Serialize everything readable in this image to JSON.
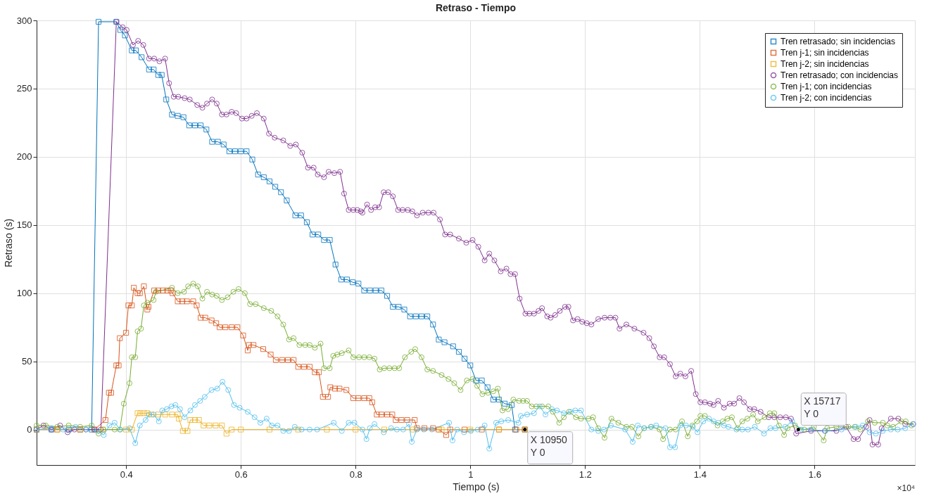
{
  "chart_data": {
    "type": "line",
    "title": "Retraso - Tiempo",
    "xlabel": "Tiempo (s)",
    "ylabel": "Retraso (s)",
    "xlim": [
      0.244,
      1.775
    ],
    "xticks": [
      0.4,
      0.6,
      0.8,
      1,
      1.2,
      1.4,
      1.6
    ],
    "ylim": [
      -26,
      300
    ],
    "yticks": [
      0,
      50,
      100,
      150,
      200,
      250,
      300
    ],
    "grid": true,
    "legend": "top right",
    "line_style": "solid",
    "annotations": [
      {
        "text": "X 10950\nY 0",
        "x": 1.095,
        "y": 0
      },
      {
        "text": "X 15717\nY 0",
        "x": 1.5717,
        "y": 0
      },
      "×10⁴"
    ],
    "series": [
      {
        "name": "Tren retrasado; sin incidencias",
        "color": "#0072bd",
        "marker": "square",
        "x": [
          0.244,
          0.27,
          0.3,
          0.32,
          0.34,
          0.352,
          0.383,
          0.39,
          0.398,
          0.41,
          0.417,
          0.427,
          0.44,
          0.448,
          0.456,
          0.462,
          0.47,
          0.48,
          0.49,
          0.5,
          0.51,
          0.52,
          0.53,
          0.54,
          0.55,
          0.56,
          0.57,
          0.58,
          0.59,
          0.6,
          0.61,
          0.62,
          0.63,
          0.64,
          0.65,
          0.66,
          0.67,
          0.68,
          0.695,
          0.705,
          0.715,
          0.725,
          0.735,
          0.745,
          0.755,
          0.765,
          0.775,
          0.785,
          0.795,
          0.805,
          0.815,
          0.825,
          0.835,
          0.845,
          0.855,
          0.865,
          0.875,
          0.885,
          0.895,
          0.905,
          0.915,
          0.925,
          0.935,
          0.945,
          0.955,
          0.97,
          0.98,
          0.99,
          1,
          1.01,
          1.02,
          1.03,
          1.04,
          1.05,
          1.06,
          1.072,
          1.078,
          1.095
        ],
        "values": [
          0,
          0,
          0,
          0,
          0,
          299,
          299,
          293,
          289,
          278,
          278,
          273,
          264,
          264,
          260,
          260,
          242,
          231,
          230,
          229,
          223,
          223,
          223,
          220,
          211,
          211,
          209,
          204,
          204,
          204,
          204,
          198,
          187,
          185,
          182,
          178,
          174,
          168,
          157,
          157,
          152,
          143,
          143,
          139,
          139,
          121,
          110,
          110,
          108,
          107,
          102,
          102,
          102,
          102,
          98,
          90,
          90,
          88,
          83,
          83,
          83,
          83,
          77,
          66,
          64,
          61,
          57,
          52,
          47,
          36,
          36,
          31,
          22,
          22,
          19,
          18,
          0,
          0
        ]
      },
      {
        "name": "Tren j-1; sin incidencias",
        "color": "#d95319",
        "marker": "square",
        "x": [
          0.244,
          0.28,
          0.32,
          0.345,
          0.364,
          0.37,
          0.374,
          0.383,
          0.387,
          0.389,
          0.4,
          0.404,
          0.41,
          0.4135,
          0.42,
          0.424,
          0.431,
          0.437,
          0.439,
          0.449,
          0.456,
          0.464,
          0.472,
          0.478,
          0.481,
          0.49,
          0.498,
          0.506,
          0.517,
          0.523,
          0.53,
          0.538,
          0.549,
          0.557,
          0.563,
          0.573,
          0.584,
          0.594,
          0.604,
          0.612,
          0.614,
          0.622,
          0.639,
          0.652,
          0.661,
          0.672,
          0.682,
          0.692,
          0.7,
          0.71,
          0.72,
          0.729,
          0.736,
          0.743,
          0.752,
          0.756,
          0.764,
          0.772,
          0.784,
          0.796,
          0.805,
          0.815,
          0.824,
          0.829,
          0.837,
          0.845,
          0.855,
          0.864,
          0.87,
          0.88,
          0.89,
          0.903,
          0.907,
          0.92,
          0.935,
          0.945,
          0.958,
          0.965,
          0.99,
          1.02,
          1.05,
          1.08,
          1.095
        ],
        "values": [
          0,
          0,
          0,
          0,
          7,
          27,
          27,
          47,
          47,
          67,
          71,
          91,
          91,
          104,
          100,
          100,
          105,
          88,
          90,
          102,
          102,
          102,
          102,
          102,
          100,
          94,
          94,
          94,
          94,
          91,
          82,
          82,
          80,
          78,
          75,
          75,
          75,
          75,
          69,
          58,
          62,
          62,
          59,
          55,
          51,
          51,
          51,
          51,
          46,
          46,
          46,
          42,
          42,
          24,
          24,
          31,
          30,
          30,
          29,
          23,
          23,
          23,
          23,
          20,
          11,
          11,
          11,
          11,
          7,
          7,
          7,
          7,
          1,
          1,
          1,
          0,
          -4,
          0,
          0,
          0,
          0,
          0,
          0
        ]
      },
      {
        "name": "Tren j-2; sin incidencias",
        "color": "#edb120",
        "marker": "square",
        "x": [
          0.244,
          0.28,
          0.32,
          0.36,
          0.4,
          0.41,
          0.42,
          0.425,
          0.431,
          0.437,
          0.444,
          0.456,
          0.468,
          0.48,
          0.49,
          0.492,
          0.499,
          0.507,
          0.512,
          0.52,
          0.527,
          0.535,
          0.545,
          0.556,
          0.567,
          0.575,
          0.584,
          0.6,
          0.65,
          0.7,
          0.75,
          0.8,
          0.85,
          0.9,
          0.95,
          1,
          1.05,
          1.095
        ],
        "values": [
          0,
          0,
          0,
          0,
          0,
          0,
          12,
          12,
          12,
          12,
          11,
          11,
          11,
          11,
          11,
          8,
          -1,
          -1,
          7,
          7,
          7,
          3,
          3,
          3,
          3,
          -3,
          0,
          0,
          0,
          0,
          0,
          0,
          0,
          0,
          0,
          0,
          0,
          0
        ]
      },
      {
        "name": "Tren retrasado; con incidencias",
        "color": "#7e2f8e",
        "marker": "circle",
        "x": [
          0.244,
          0.256,
          0.27,
          0.285,
          0.298,
          0.31,
          0.33,
          0.345,
          0.356,
          0.383,
          0.394,
          0.401,
          0.412,
          0.421,
          0.43,
          0.44,
          0.449,
          0.458,
          0.468,
          0.475,
          0.483,
          0.491,
          0.502,
          0.511,
          0.524,
          0.533,
          0.541,
          0.55,
          0.558,
          0.567,
          0.575,
          0.584,
          0.592,
          0.602,
          0.61,
          0.619,
          0.628,
          0.64,
          0.649,
          0.659,
          0.674,
          0.686,
          0.696,
          0.707,
          0.717,
          0.727,
          0.734,
          0.745,
          0.753,
          0.763,
          0.773,
          0.78,
          0.788,
          0.796,
          0.803,
          0.809,
          0.812,
          0.82,
          0.827,
          0.834,
          0.841,
          0.849,
          0.857,
          0.865,
          0.874,
          0.882,
          0.891,
          0.899,
          0.907,
          0.917,
          0.927,
          0.936,
          0.947,
          0.956,
          0.965,
          0.98,
          0.993,
          1.004,
          1.014,
          1.025,
          1.033,
          1.042,
          1.053,
          1.063,
          1.07,
          1.078,
          1.086,
          1.096,
          1.103,
          1.111,
          1.119,
          1.125,
          1.134,
          1.14,
          1.148,
          1.156,
          1.165,
          1.171,
          1.179,
          1.187,
          1.195,
          1.203,
          1.211,
          1.223,
          1.234,
          1.244,
          1.253,
          1.26,
          1.272,
          1.286,
          1.302,
          1.312,
          1.32,
          1.33,
          1.338,
          1.348,
          1.358,
          1.366,
          1.375,
          1.385,
          1.393,
          1.401,
          1.409,
          1.418,
          1.424,
          1.432,
          1.442,
          1.452,
          1.46,
          1.469,
          1.477,
          1.487,
          1.495,
          1.506,
          1.52,
          1.53,
          1.54,
          1.55,
          1.559,
          1.568,
          1.594,
          1.618,
          1.638,
          1.655,
          1.668,
          1.676,
          1.69,
          1.696,
          1.701,
          1.711,
          1.717,
          1.733,
          1.746,
          1.758,
          1.772
        ],
        "values": [
          0,
          3,
          0,
          3,
          -2,
          0,
          0,
          0,
          0,
          299,
          295,
          293,
          282,
          285,
          282,
          272,
          272,
          270,
          272,
          254,
          244,
          244,
          243,
          242,
          238,
          236,
          239,
          242,
          239,
          231,
          231,
          233,
          232,
          228,
          228,
          230,
          232,
          228,
          217,
          214,
          212,
          208,
          209,
          203,
          192,
          192,
          187,
          185,
          189,
          188,
          189,
          173,
          161,
          161,
          161,
          160,
          159,
          165,
          161,
          163,
          163,
          174,
          174,
          171,
          161,
          161,
          161,
          160,
          157,
          159,
          159,
          159,
          154,
          143,
          143,
          140,
          137,
          139,
          134,
          124,
          129,
          124,
          116,
          118,
          114,
          114,
          96,
          85,
          85,
          85,
          87,
          89,
          83,
          82,
          84,
          87,
          90,
          90,
          80,
          81,
          79,
          78,
          77,
          81,
          82,
          82,
          82,
          74,
          77,
          74,
          71,
          67,
          61,
          53,
          53,
          48,
          39,
          41,
          39,
          43,
          26,
          20,
          20,
          19,
          18,
          21,
          16,
          19,
          19,
          23,
          20,
          15,
          15,
          13,
          9,
          9,
          9,
          9,
          8,
          -3,
          -1,
          -1,
          -1,
          2,
          -7,
          -7,
          2,
          7,
          -11,
          -11,
          1,
          8,
          8,
          4,
          4
        ]
      },
      {
        "name": "Tren j-1; con incidencias",
        "color": "#77ac30",
        "marker": "circle",
        "x": [
          0.244,
          0.26,
          0.28,
          0.3,
          0.32,
          0.34,
          0.352,
          0.36,
          0.38,
          0.389,
          0.396,
          0.406,
          0.41,
          0.416,
          0.42,
          0.426,
          0.431,
          0.437,
          0.448,
          0.452,
          0.48,
          0.49,
          0.501,
          0.508,
          0.517,
          0.525,
          0.533,
          0.541,
          0.55,
          0.558,
          0.567,
          0.577,
          0.587,
          0.596,
          0.607,
          0.616,
          0.626,
          0.64,
          0.653,
          0.664,
          0.674,
          0.684,
          0.692,
          0.702,
          0.712,
          0.72,
          0.729,
          0.739,
          0.745,
          0.755,
          0.761,
          0.768,
          0.776,
          0.788,
          0.796,
          0.806,
          0.815,
          0.824,
          0.833,
          0.842,
          0.85,
          0.859,
          0.868,
          0.876,
          0.886,
          0.897,
          0.904,
          0.915,
          0.925,
          0.935,
          0.95,
          0.962,
          0.972,
          0.983,
          0.994,
          1.004,
          1.012,
          1.021,
          1.031,
          1.04,
          1.048,
          1.056,
          1.066,
          1.075,
          1.085,
          1.092,
          1.099,
          1.107,
          1.115,
          1.125,
          1.136,
          1.144,
          1.155,
          1.163,
          1.172,
          1.184,
          1.193,
          1.206,
          1.214,
          1.223,
          1.234,
          1.246,
          1.258,
          1.272,
          1.282,
          1.293,
          1.303,
          1.315,
          1.33,
          1.336,
          1.348,
          1.358,
          1.369,
          1.379,
          1.387,
          1.395,
          1.401,
          1.409,
          1.431,
          1.44,
          1.448,
          1.456,
          1.466,
          1.474,
          1.483,
          1.493,
          1.501,
          1.513,
          1.522,
          1.53,
          1.538,
          1.547,
          1.553,
          1.566,
          1.582,
          1.599,
          1.616,
          1.622,
          1.638,
          1.659,
          1.67,
          1.68,
          1.693,
          1.705,
          1.719,
          1.727,
          1.737,
          1.751,
          1.759,
          1.769
        ],
        "values": [
          3,
          3,
          2,
          3,
          2,
          3,
          -3,
          0,
          0,
          0,
          19,
          34,
          53,
          53,
          72,
          74,
          91,
          93,
          95,
          101,
          104,
          100,
          101,
          105,
          107,
          105,
          96,
          101,
          99,
          98,
          95,
          97,
          101,
          103,
          100,
          92,
          92,
          89,
          87,
          83,
          77,
          66,
          67,
          62,
          62,
          62,
          60,
          63,
          45,
          45,
          54,
          55,
          56,
          58,
          53,
          53,
          53,
          53,
          52,
          44,
          45,
          45,
          45,
          45,
          53,
          57,
          59,
          53,
          44,
          43,
          40,
          37,
          34,
          29,
          36,
          37,
          32,
          26,
          27,
          28,
          30,
          14,
          15,
          22,
          21,
          21,
          21,
          17,
          17,
          17,
          17,
          13,
          5,
          9,
          13,
          9,
          8,
          8,
          9,
          1,
          -6,
          8,
          5,
          2,
          2,
          -5,
          1,
          2,
          0,
          -7,
          0,
          0,
          6,
          -5,
          3,
          6,
          10,
          10,
          3,
          6,
          8,
          9,
          1,
          6,
          8,
          11,
          6,
          9,
          12,
          12,
          3,
          -4,
          1,
          3,
          0,
          2,
          -8,
          1,
          2,
          2,
          2,
          0,
          6,
          5,
          5,
          3,
          2,
          6,
          6,
          3
        ]
      },
      {
        "name": "Tren j-2; con incidencias",
        "color": "#4dbeee",
        "marker": "circle",
        "x": [
          0.244,
          0.27,
          0.29,
          0.312,
          0.33,
          0.35,
          0.361,
          0.371,
          0.38,
          0.39,
          0.406,
          0.416,
          0.424,
          0.434,
          0.44,
          0.448,
          0.457,
          0.463,
          0.471,
          0.479,
          0.486,
          0.494,
          0.502,
          0.512,
          0.52,
          0.529,
          0.537,
          0.549,
          0.559,
          0.568,
          0.578,
          0.588,
          0.598,
          0.612,
          0.624,
          0.634,
          0.645,
          0.654,
          0.664,
          0.674,
          0.684,
          0.694,
          0.706,
          0.72,
          0.733,
          0.762,
          0.776,
          0.788,
          0.798,
          0.812,
          0.819,
          0.825,
          0.833,
          0.849,
          0.862,
          0.872,
          0.883,
          0.893,
          0.898,
          0.907,
          0.919,
          0.933,
          0.963,
          0.969,
          0.977,
          0.989,
          1.001,
          1.013,
          1.025,
          1.033,
          1.045,
          1.054,
          1.066,
          1.084,
          1.088,
          1.099,
          1.111,
          1.121,
          1.131,
          1.142,
          1.151,
          1.163,
          1.175,
          1.183,
          1.193,
          1.211,
          1.223,
          1.233,
          1.245,
          1.27,
          1.283,
          1.292,
          1.303,
          1.315,
          1.324,
          1.34,
          1.348,
          1.357,
          1.366,
          1.376,
          1.388,
          1.396,
          1.406,
          1.416,
          1.424,
          1.432,
          1.442,
          1.45,
          1.464,
          1.474,
          1.484,
          1.496,
          1.512,
          1.523,
          1.532,
          1.549,
          1.561,
          1.577,
          1.594,
          1.619,
          1.647,
          1.672,
          1.684,
          1.696,
          1.707,
          1.719,
          1.733,
          1.745,
          1.758,
          1.772
        ],
        "values": [
          0,
          1,
          0,
          2,
          0,
          -1,
          -4,
          3,
          5,
          0,
          1,
          -10,
          3,
          7,
          11,
          11,
          6,
          14,
          15,
          17,
          18,
          15,
          9,
          14,
          18,
          21,
          24,
          29,
          30,
          35,
          29,
          18,
          16,
          13,
          9,
          5,
          8,
          3,
          3,
          -1,
          -1,
          2,
          0,
          0,
          0,
          5,
          -1,
          5,
          5,
          0,
          -7,
          1,
          4,
          -2,
          1,
          0,
          0,
          4,
          -9,
          0,
          0,
          0,
          5,
          -8,
          0,
          -2,
          -1,
          0,
          3,
          -14,
          5,
          6,
          7,
          5,
          10,
          11,
          12,
          17,
          11,
          15,
          14,
          12,
          13,
          14,
          14,
          0,
          -1,
          0,
          3,
          0,
          -9,
          3,
          1,
          2,
          3,
          1,
          -13,
          -13,
          3,
          3,
          2,
          -2,
          6,
          8,
          6,
          5,
          3,
          2,
          0,
          0,
          0,
          2,
          -3,
          1,
          1,
          2,
          6,
          0,
          0,
          -1,
          0,
          2,
          3,
          -2,
          -3,
          -1,
          0,
          0,
          1,
          4
        ]
      }
    ]
  }
}
